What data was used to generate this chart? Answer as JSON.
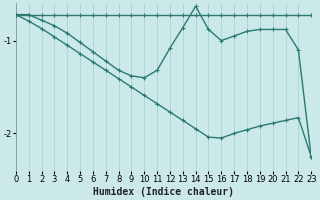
{
  "xlabel": "Humidex (Indice chaleur)",
  "background_color": "#cce9ea",
  "plot_bg_color": "#cce9ea",
  "grid_color": "#aad4d8",
  "line_color": "#2a7a70",
  "xlim": [
    0,
    23
  ],
  "ylim": [
    -2.4,
    -0.6
  ],
  "xticks": [
    0,
    1,
    2,
    3,
    4,
    5,
    6,
    7,
    8,
    9,
    10,
    11,
    12,
    13,
    14,
    15,
    16,
    17,
    18,
    19,
    20,
    21,
    22,
    23
  ],
  "yticks": [
    -2,
    -1
  ],
  "line1_x": [
    0,
    1,
    2,
    3,
    4,
    5,
    6,
    7,
    8,
    9,
    10,
    11,
    12,
    13,
    14,
    15,
    16,
    17,
    18,
    19,
    20,
    21,
    22,
    23
  ],
  "line1_y": [
    -0.72,
    -0.72,
    -0.72,
    -0.72,
    -0.72,
    -0.72,
    -0.72,
    -0.72,
    -0.72,
    -0.72,
    -0.72,
    -0.72,
    -0.72,
    -0.72,
    -0.72,
    -0.72,
    -0.72,
    -0.72,
    -0.72,
    -0.72,
    -0.72,
    -0.72,
    -0.72,
    -0.72
  ],
  "line2_x": [
    0,
    1,
    2,
    3,
    4,
    5,
    6,
    7,
    8,
    9,
    10,
    11,
    12,
    13,
    14,
    15,
    16,
    17,
    18,
    19,
    20,
    21,
    22,
    23
  ],
  "line2_y": [
    -0.72,
    -0.72,
    -0.78,
    -0.84,
    -0.92,
    -1.02,
    -1.12,
    -1.22,
    -1.32,
    -1.38,
    -1.4,
    -1.32,
    -1.08,
    -0.86,
    -0.63,
    -0.88,
    -1.0,
    -0.95,
    -0.9,
    -0.88,
    -0.88,
    -0.88,
    -1.1,
    -2.25
  ],
  "line3_x": [
    0,
    1,
    2,
    3,
    4,
    5,
    6,
    7,
    8,
    9,
    10,
    11,
    12,
    13,
    14,
    15,
    16,
    17,
    18,
    19,
    20,
    21,
    22,
    23
  ],
  "line3_y": [
    -0.72,
    -0.79,
    -0.87,
    -0.96,
    -1.05,
    -1.14,
    -1.23,
    -1.32,
    -1.41,
    -1.5,
    -1.59,
    -1.68,
    -1.77,
    -1.86,
    -1.95,
    -2.04,
    -2.05,
    -2.0,
    -1.96,
    -1.92,
    -1.89,
    -1.86,
    -1.83,
    -2.25
  ],
  "marker": "+",
  "markersize": 3.5,
  "linewidth": 1.0,
  "tick_fontsize": 6,
  "label_fontsize": 7
}
